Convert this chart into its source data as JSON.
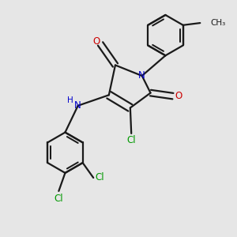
{
  "bg_color": "#e6e6e6",
  "bond_color": "#1a1a1a",
  "N_color": "#0000cc",
  "O_color": "#cc0000",
  "Cl_color": "#009900",
  "line_width": 1.6,
  "figsize": [
    3.0,
    3.0
  ],
  "dpi": 100,
  "xlim": [
    -4,
    6
  ],
  "ylim": [
    -6,
    5
  ]
}
